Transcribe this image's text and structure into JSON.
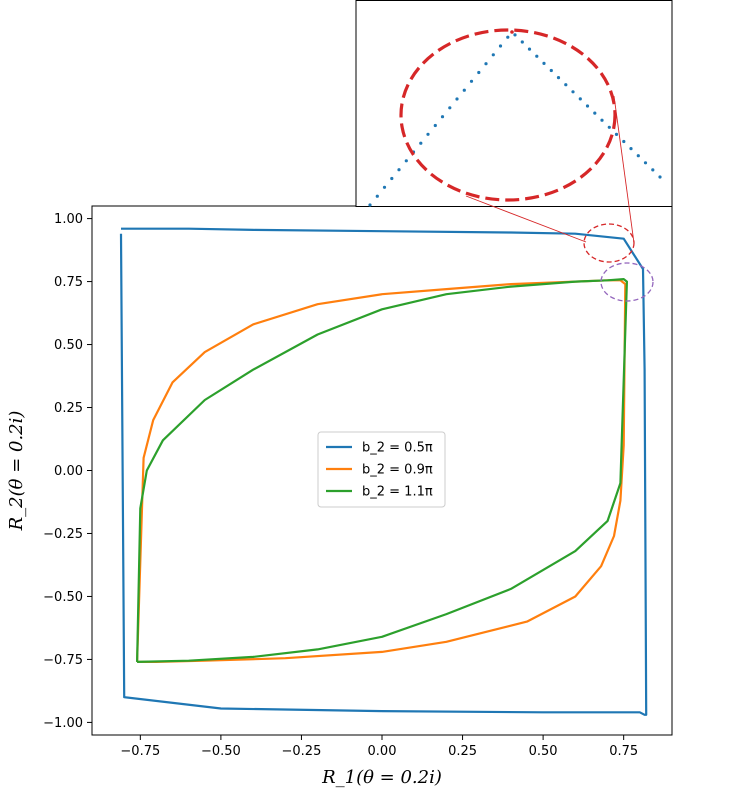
{
  "chart_data": {
    "type": "line",
    "xlabel": "R_1(θ = 0.2i)",
    "ylabel": "R_2(θ = 0.2i)",
    "xlim": [
      -0.9,
      0.9
    ],
    "ylim": [
      -1.05,
      1.05
    ],
    "xticks": [
      "−0.75",
      "−0.50",
      "−0.25",
      "0.00",
      "0.25",
      "0.50",
      "0.75"
    ],
    "xtick_values": [
      -0.75,
      -0.5,
      -0.25,
      0.0,
      0.25,
      0.5,
      0.75
    ],
    "yticks": [
      "−1.00",
      "−0.75",
      "−0.50",
      "−0.25",
      "0.00",
      "0.25",
      "0.50",
      "0.75",
      "1.00"
    ],
    "ytick_values": [
      -1.0,
      -0.75,
      -0.5,
      -0.25,
      0.0,
      0.25,
      0.5,
      0.75,
      1.0
    ],
    "grid": false,
    "legend_position": "center",
    "series": [
      {
        "name": "b_2 = 0.5π",
        "color": "#1f77b4",
        "x": [
          -0.81,
          -0.81,
          -0.805,
          -0.8,
          -0.79,
          -0.78,
          -0.77,
          -0.75,
          -0.72,
          -0.68,
          -0.6,
          -0.4,
          0.0,
          0.4,
          0.6,
          0.75,
          0.81,
          0.815,
          0.82,
          0.815,
          0.8,
          0.79,
          0.78,
          0.77,
          0.76,
          0.75,
          0.74,
          0.72,
          0.68,
          0.5,
          0.0,
          -0.5,
          -0.8,
          -0.81
        ],
        "y": [
          0.96,
          0.96,
          0.96,
          0.96,
          0.96,
          0.96,
          0.96,
          0.96,
          0.96,
          0.96,
          0.96,
          0.955,
          0.95,
          0.945,
          0.94,
          0.92,
          0.8,
          0.4,
          -0.97,
          -0.97,
          -0.96,
          -0.96,
          -0.96,
          -0.96,
          -0.96,
          -0.96,
          -0.96,
          -0.96,
          -0.96,
          -0.96,
          -0.955,
          -0.945,
          -0.9,
          0.94
        ]
      },
      {
        "name": "b_2 = 0.9π",
        "color": "#ff7f0e",
        "x": [
          -0.76,
          -0.74,
          -0.71,
          -0.65,
          -0.55,
          -0.4,
          -0.2,
          0.0,
          0.2,
          0.4,
          0.6,
          0.7,
          0.74,
          0.755,
          0.75,
          0.74,
          0.72,
          0.68,
          0.6,
          0.45,
          0.2,
          0.0,
          -0.3,
          -0.55,
          -0.7,
          -0.76
        ],
        "y": [
          -0.76,
          0.05,
          0.2,
          0.35,
          0.47,
          0.58,
          0.66,
          0.7,
          0.72,
          0.74,
          0.75,
          0.755,
          0.755,
          0.74,
          0.1,
          -0.12,
          -0.26,
          -0.38,
          -0.5,
          -0.6,
          -0.68,
          -0.72,
          -0.745,
          -0.755,
          -0.76,
          -0.76
        ]
      },
      {
        "name": "b_2 = 1.1π",
        "color": "#2ca02c",
        "x": [
          -0.76,
          -0.75,
          -0.73,
          -0.68,
          -0.55,
          -0.4,
          -0.2,
          0.0,
          0.2,
          0.4,
          0.6,
          0.7,
          0.75,
          0.76,
          0.74,
          0.7,
          0.6,
          0.4,
          0.2,
          0.0,
          -0.2,
          -0.4,
          -0.6,
          -0.76
        ],
        "y": [
          -0.76,
          -0.15,
          0.0,
          0.12,
          0.28,
          0.4,
          0.54,
          0.64,
          0.7,
          0.73,
          0.75,
          0.755,
          0.76,
          0.75,
          -0.05,
          -0.2,
          -0.32,
          -0.47,
          -0.57,
          -0.66,
          -0.71,
          -0.74,
          -0.755,
          -0.76
        ]
      }
    ],
    "inset": {
      "description_visible": "zoomed dotted curve",
      "circle_colors": [
        "#d62728",
        "#9467bd"
      ]
    }
  }
}
